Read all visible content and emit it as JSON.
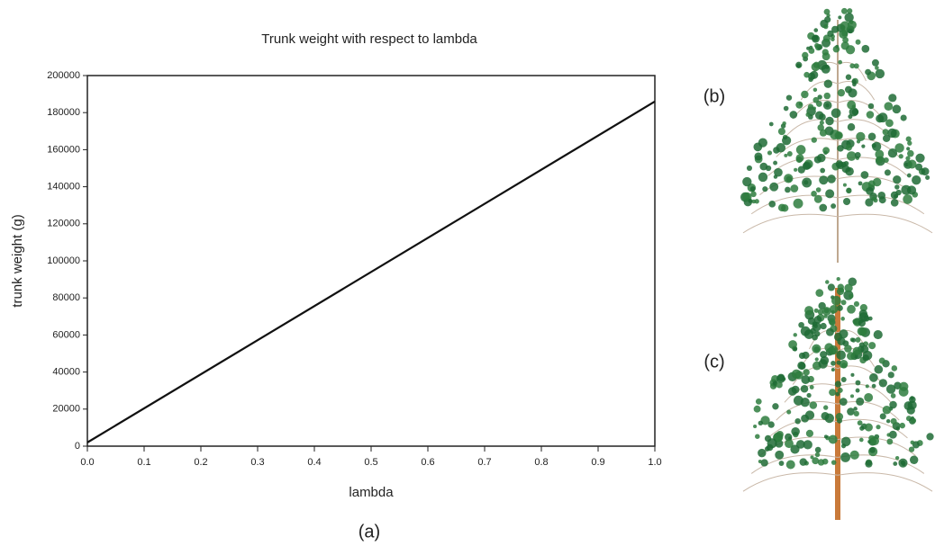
{
  "chart_data": {
    "type": "line",
    "title": "Trunk weight with respect to lambda",
    "x_label": "lambda",
    "y_label": "trunk weight (g)",
    "x": [
      0,
      1.0
    ],
    "values": [
      2000,
      186000
    ],
    "color": "#111111",
    "xlim": [
      0,
      1.0
    ],
    "ylim": [
      0,
      200000
    ],
    "xticks": [
      {
        "value": 0,
        "label": "0.0"
      },
      0.1,
      0.2,
      0.3,
      0.4,
      0.5,
      0.6,
      0.7,
      0.8,
      0.9,
      {
        "value": 1.0,
        "label": "1.0"
      }
    ],
    "yticks": [
      0,
      20000,
      40000,
      60000,
      80000,
      100000,
      120000,
      140000,
      160000,
      180000,
      200000
    ],
    "grid": false
  },
  "panel_labels": [
    "(a)",
    "(b)",
    "(c)"
  ]
}
